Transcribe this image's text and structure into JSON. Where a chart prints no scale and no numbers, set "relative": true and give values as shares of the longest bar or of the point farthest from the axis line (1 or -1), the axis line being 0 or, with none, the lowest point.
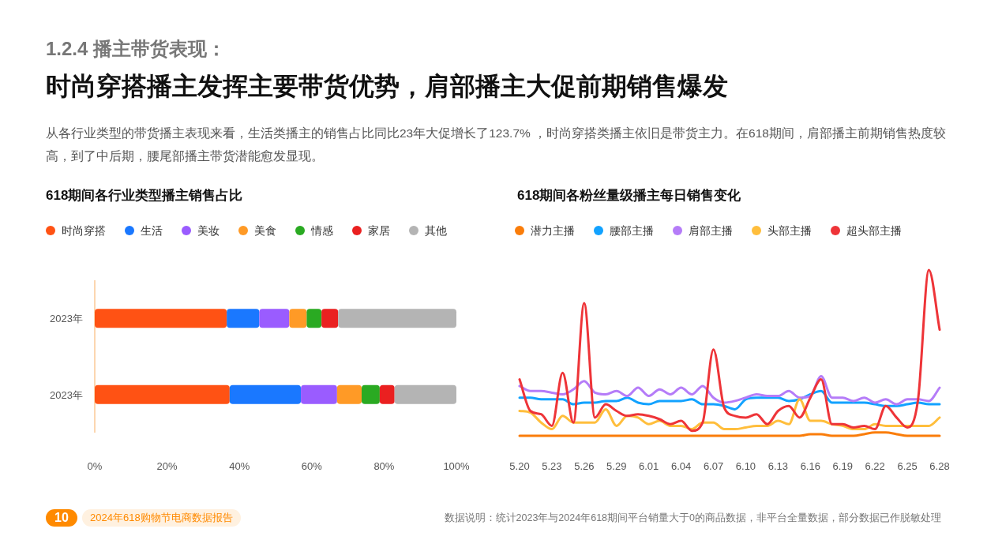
{
  "chart_data": [
    {
      "type": "other",
      "title": "1.2.4 播主带货表现：",
      "subtitle": "时尚穿搭播主发挥主要带货优势，肩部播主大促前期销售爆发",
      "annotations": [
        "从各行业类型的带货播主表现来看，生活类播主的销售占比同比23年大促增长了123.7% ，时尚穿搭类播主依旧是带货主力。在618期间，肩部播主前期销售热度较高，到了中后期，腰尾部播主带货潜能愈发显现。",
        "10",
        "2024年618购物节电商数据报告",
        "数据说明：统计2023年与2024年618期间平台销量大于0的商品数据，非平台全量数据，部分数据已作脱敏处理"
      ]
    },
    {
      "type": "bar",
      "orientation": "horizontal",
      "stacked": true,
      "title": "618期间各行业类型播主销售占比",
      "legend": "top left",
      "categories": [
        "2023年",
        "2023年"
      ],
      "xlim": [
        0,
        100
      ],
      "xticks": [
        {
          "value": 0,
          "label": "0%"
        },
        {
          "value": 20,
          "label": "20%"
        },
        {
          "value": 40,
          "label": "40%"
        },
        {
          "value": 60,
          "label": "60%"
        },
        {
          "value": 80,
          "label": "80%"
        },
        {
          "value": 100,
          "label": "100%"
        }
      ],
      "series": [
        {
          "name": "时尚穿搭",
          "color": "#ff5214",
          "values": [
            36.5,
            37.3
          ]
        },
        {
          "name": "生活",
          "color": "#1a78ff",
          "values": [
            9.0,
            19.7
          ]
        },
        {
          "name": "美妆",
          "color": "#9a5cff",
          "values": [
            8.3,
            10.0
          ]
        },
        {
          "name": "美食",
          "color": "#ff9a26",
          "values": [
            4.8,
            6.8
          ]
        },
        {
          "name": "情感",
          "color": "#2aaa22",
          "values": [
            4.1,
            5.0
          ]
        },
        {
          "name": "家居",
          "color": "#ea2020",
          "values": [
            4.6,
            4.1
          ]
        },
        {
          "name": "其他",
          "color": "#b4b4b4",
          "values": [
            32.7,
            17.1
          ]
        }
      ]
    },
    {
      "type": "line",
      "relative": true,
      "title": "618期间各粉丝量级播主每日销售变化",
      "legend": "top left",
      "categories": [
        "5.20",
        null,
        null,
        "5.23",
        null,
        null,
        "5.26",
        null,
        null,
        "5.29",
        null,
        null,
        "6.01",
        null,
        null,
        "6.04",
        null,
        null,
        "6.07",
        null,
        null,
        "6.10",
        null,
        null,
        "6.13",
        null,
        null,
        "6.16",
        null,
        null,
        "6.19",
        null,
        null,
        "6.22",
        null,
        null,
        "6.25",
        null,
        null,
        "6.28"
      ],
      "series": [
        {
          "name": "潜力主播",
          "color": "#fa7d0a",
          "values": [
            0,
            0,
            0,
            0,
            0,
            0,
            0,
            0,
            0,
            0,
            0,
            0,
            0,
            0,
            0,
            0,
            0,
            0,
            0,
            0,
            0,
            0,
            0,
            0,
            0,
            0,
            0,
            0.01,
            0.01,
            0,
            0,
            0,
            0.01,
            0.02,
            0.02,
            0.01,
            0,
            0,
            0,
            0
          ]
        },
        {
          "name": "腰部主播",
          "color": "#12a2ff",
          "values": [
            0.23,
            0.23,
            0.22,
            0.22,
            0.22,
            0.19,
            0.2,
            0.2,
            0.21,
            0.21,
            0.23,
            0.2,
            0.19,
            0.21,
            0.21,
            0.21,
            0.22,
            0.19,
            0.19,
            0.18,
            0.16,
            0.22,
            0.23,
            0.23,
            0.23,
            0.21,
            0.22,
            0.25,
            0.27,
            0.2,
            0.2,
            0.2,
            0.2,
            0.19,
            0.18,
            0.18,
            0.19,
            0.2,
            0.19,
            0.19
          ]
        },
        {
          "name": "肩部主播",
          "color": "#b57cf8",
          "values": [
            0.3,
            0.27,
            0.27,
            0.26,
            0.25,
            0.28,
            0.33,
            0.26,
            0.25,
            0.27,
            0.24,
            0.29,
            0.24,
            0.28,
            0.25,
            0.29,
            0.25,
            0.3,
            0.23,
            0.2,
            0.21,
            0.23,
            0.25,
            0.24,
            0.24,
            0.27,
            0.23,
            0.24,
            0.36,
            0.23,
            0.23,
            0.21,
            0.23,
            0.2,
            0.22,
            0.19,
            0.22,
            0.22,
            0.21,
            0.29
          ]
        },
        {
          "name": "头部主播",
          "color": "#ffbe3c",
          "values": [
            0.15,
            0.14,
            0.08,
            0.04,
            0.12,
            0.08,
            0.08,
            0.08,
            0.16,
            0.06,
            0.12,
            0.11,
            0.07,
            0.09,
            0.06,
            0.06,
            0.04,
            0.08,
            0.08,
            0.04,
            0.04,
            0.05,
            0.06,
            0.06,
            0.09,
            0.07,
            0.22,
            0.09,
            0.09,
            0.07,
            0.06,
            0.04,
            0.04,
            0.07,
            0.06,
            0.06,
            0.06,
            0.06,
            0.06,
            0.11
          ]
        },
        {
          "name": "超头部主播",
          "color": "#ee3438",
          "values": [
            0.34,
            0.15,
            0.13,
            0.06,
            0.38,
            0.08,
            0.8,
            0.11,
            0.19,
            0.15,
            0.12,
            0.13,
            0.12,
            0.1,
            0.07,
            0.09,
            0.03,
            0.08,
            0.52,
            0.17,
            0.12,
            0.11,
            0.13,
            0.07,
            0.15,
            0.18,
            0.11,
            0.23,
            0.34,
            0.07,
            0.07,
            0.05,
            0.06,
            0.04,
            0.18,
            0.11,
            0.05,
            0.22,
            1.0,
            0.64
          ]
        }
      ]
    }
  ]
}
